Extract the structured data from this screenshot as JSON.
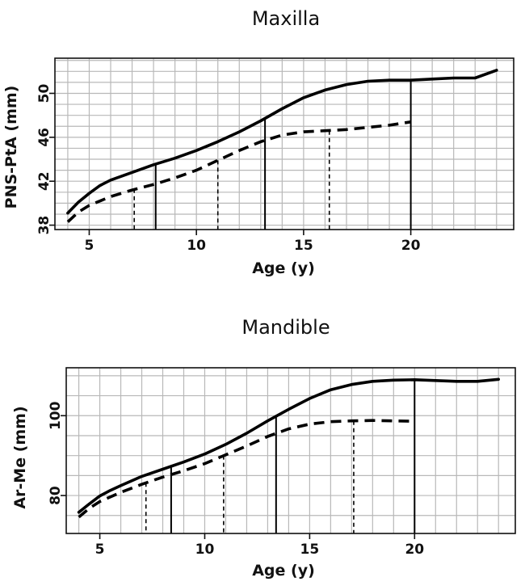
{
  "chart_data": [
    {
      "type": "line",
      "title": "Maxilla",
      "xlabel": "Age (y)",
      "ylabel": "PNS-PtA (mm)",
      "xlim": [
        3.4,
        24.8
      ],
      "ylim": [
        37.6,
        53.2
      ],
      "xticks": [
        5,
        10,
        15,
        20
      ],
      "yticks": [
        38,
        42,
        46,
        50
      ],
      "grid": true,
      "series": [
        {
          "name": "solid",
          "style": "solid",
          "x": [
            4,
            4.5,
            5,
            5.5,
            6,
            7,
            8,
            9,
            10,
            11,
            12,
            13,
            14,
            15,
            16,
            17,
            18,
            19,
            20,
            21,
            22,
            23,
            24
          ],
          "y": [
            39.1,
            40.1,
            40.9,
            41.6,
            42.1,
            42.8,
            43.5,
            44.1,
            44.8,
            45.6,
            46.5,
            47.5,
            48.6,
            49.6,
            50.3,
            50.8,
            51.1,
            51.2,
            51.2,
            51.3,
            51.4,
            51.4,
            52.1
          ]
        },
        {
          "name": "dashed",
          "style": "dashed",
          "x": [
            4,
            4.5,
            5,
            6,
            7,
            8,
            9,
            10,
            11,
            12,
            13,
            14,
            15,
            16,
            17,
            18,
            19,
            20
          ],
          "y": [
            38.3,
            39.2,
            39.8,
            40.6,
            41.2,
            41.7,
            42.3,
            43.0,
            43.9,
            44.8,
            45.6,
            46.2,
            46.5,
            46.6,
            46.7,
            46.9,
            47.1,
            47.4
          ]
        }
      ],
      "drop_lines": [
        {
          "x": 8.1,
          "y": 43.5,
          "style": "solid"
        },
        {
          "x": 13.2,
          "y": 47.7,
          "style": "solid"
        },
        {
          "x": 20,
          "y": 51.2,
          "style": "solid"
        },
        {
          "x": 7.1,
          "y": 41.3,
          "style": "dashed"
        },
        {
          "x": 11,
          "y": 43.9,
          "style": "dashed"
        },
        {
          "x": 16.2,
          "y": 46.6,
          "style": "dashed"
        }
      ]
    },
    {
      "type": "line",
      "title": "Mandible",
      "xlabel": "Age (y)",
      "ylabel": "Ar-Me (mm)",
      "xlim": [
        3.4,
        24.8
      ],
      "ylim": [
        70.5,
        112
      ],
      "xticks": [
        5,
        10,
        15,
        20
      ],
      "yticks": [
        80,
        100
      ],
      "grid": true,
      "series": [
        {
          "name": "solid",
          "style": "solid",
          "x": [
            4,
            4.5,
            5,
            5.5,
            6,
            7,
            8,
            9,
            10,
            11,
            12,
            13,
            14,
            15,
            16,
            17,
            18,
            19,
            20,
            21,
            22,
            23,
            24
          ],
          "y": [
            75.8,
            77.9,
            79.9,
            81.3,
            82.5,
            84.8,
            86.6,
            88.4,
            90.4,
            92.8,
            95.6,
            98.7,
            101.6,
            104.3,
            106.5,
            107.8,
            108.6,
            108.9,
            109.0,
            108.8,
            108.6,
            108.6,
            109.1
          ]
        },
        {
          "name": "dashed",
          "style": "dashed",
          "x": [
            4,
            4.5,
            5,
            6,
            7,
            8,
            9,
            10,
            11,
            12,
            13,
            14,
            15,
            16,
            17,
            18,
            19,
            20
          ],
          "y": [
            74.6,
            76.8,
            78.5,
            80.8,
            82.8,
            84.6,
            86.2,
            88.0,
            90.2,
            92.4,
            94.8,
            96.7,
            97.9,
            98.5,
            98.7,
            98.8,
            98.7,
            98.6
          ]
        }
      ],
      "drop_lines": [
        {
          "x": 8.4,
          "y": 87.2,
          "style": "solid"
        },
        {
          "x": 13.4,
          "y": 99.8,
          "style": "solid"
        },
        {
          "x": 20,
          "y": 109,
          "style": "solid"
        },
        {
          "x": 7.2,
          "y": 83.2,
          "style": "dashed"
        },
        {
          "x": 10.9,
          "y": 90.0,
          "style": "dashed"
        },
        {
          "x": 17.1,
          "y": 98.7,
          "style": "dashed"
        }
      ]
    }
  ]
}
